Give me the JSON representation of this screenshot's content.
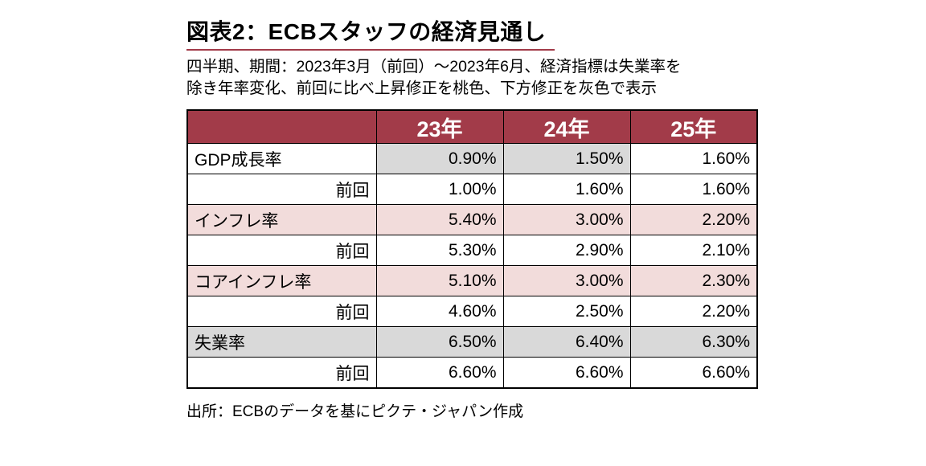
{
  "figure": {
    "title": "図表2：ECBスタッフの経済見通し",
    "subtitle_line1": "四半期、期間：2023年3月（前回）～2023年6月、経済指標は失業率を",
    "subtitle_line2": "除き年率変化、前回に比べ上昇修正を桃色、下方修正を灰色で表示",
    "source": "出所：ECBのデータを基にピクテ・ジャパン作成"
  },
  "chart_data": {
    "type": "table",
    "title": "図表2：ECBスタッフの経済見通し",
    "columns": [
      "",
      "23年",
      "24年",
      "25年"
    ],
    "rows": [
      {
        "label": "GDP成長率",
        "values": [
          "0.90%",
          "1.50%",
          "1.60%"
        ],
        "cell_colors": [
          "white",
          "gray",
          "gray",
          "white"
        ]
      },
      {
        "label": "前回",
        "values": [
          "1.00%",
          "1.60%",
          "1.60%"
        ],
        "cell_colors": [
          "white",
          "white",
          "white",
          "white"
        ]
      },
      {
        "label": "インフレ率",
        "values": [
          "5.40%",
          "3.00%",
          "2.20%"
        ],
        "cell_colors": [
          "pink",
          "pink",
          "pink",
          "pink"
        ]
      },
      {
        "label": "前回",
        "values": [
          "5.30%",
          "2.90%",
          "2.10%"
        ],
        "cell_colors": [
          "white",
          "white",
          "white",
          "white"
        ]
      },
      {
        "label": "コアインフレ率",
        "values": [
          "5.10%",
          "3.00%",
          "2.30%"
        ],
        "cell_colors": [
          "pink",
          "pink",
          "pink",
          "pink"
        ]
      },
      {
        "label": "前回",
        "values": [
          "4.60%",
          "2.50%",
          "2.20%"
        ],
        "cell_colors": [
          "white",
          "white",
          "white",
          "white"
        ]
      },
      {
        "label": "失業率",
        "values": [
          "6.50%",
          "6.40%",
          "6.30%"
        ],
        "cell_colors": [
          "gray",
          "gray",
          "gray",
          "gray"
        ]
      },
      {
        "label": "前回",
        "values": [
          "6.60%",
          "6.60%",
          "6.60%"
        ],
        "cell_colors": [
          "white",
          "white",
          "white",
          "white"
        ]
      }
    ],
    "legend": {
      "pink_meaning": "前回に比べ上昇修正を桃色",
      "gray_meaning": "下方修正を灰色で表示"
    },
    "colors": {
      "header_bg": "#A23B49",
      "header_text": "#FFFFFF",
      "pink": "#F2DCDB",
      "gray": "#D9D9D9",
      "accent_line": "#A23B49",
      "table_border": "#000000"
    }
  }
}
